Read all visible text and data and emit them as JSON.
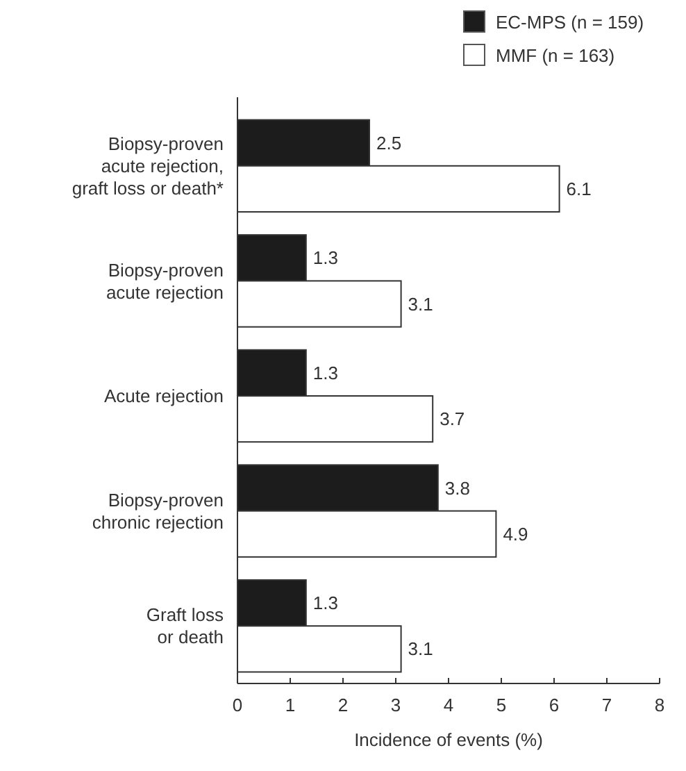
{
  "chart_data": {
    "type": "bar",
    "orientation": "horizontal",
    "xlabel": "Incidence of events (%)",
    "categories": [
      "Biopsy-proven\nacute rejection,\ngraft loss or death*",
      "Biopsy-proven\nacute rejection",
      "Acute rejection",
      "Biopsy-proven\nchronic rejection",
      "Graft loss\nor death"
    ],
    "series": [
      {
        "name": "EC-MPS (n = 159)",
        "color": "#1c1c1c",
        "values": [
          2.5,
          1.3,
          1.3,
          3.8,
          1.3
        ]
      },
      {
        "name": "MMF (n = 163)",
        "color": "#ffffff",
        "values": [
          6.1,
          3.1,
          3.7,
          4.9,
          3.1
        ]
      }
    ],
    "xlim": [
      0,
      8
    ],
    "xticks": [
      0,
      1,
      2,
      3,
      4,
      5,
      6,
      7,
      8
    ],
    "data_labels": true,
    "legend": "top right",
    "grid": false
  }
}
